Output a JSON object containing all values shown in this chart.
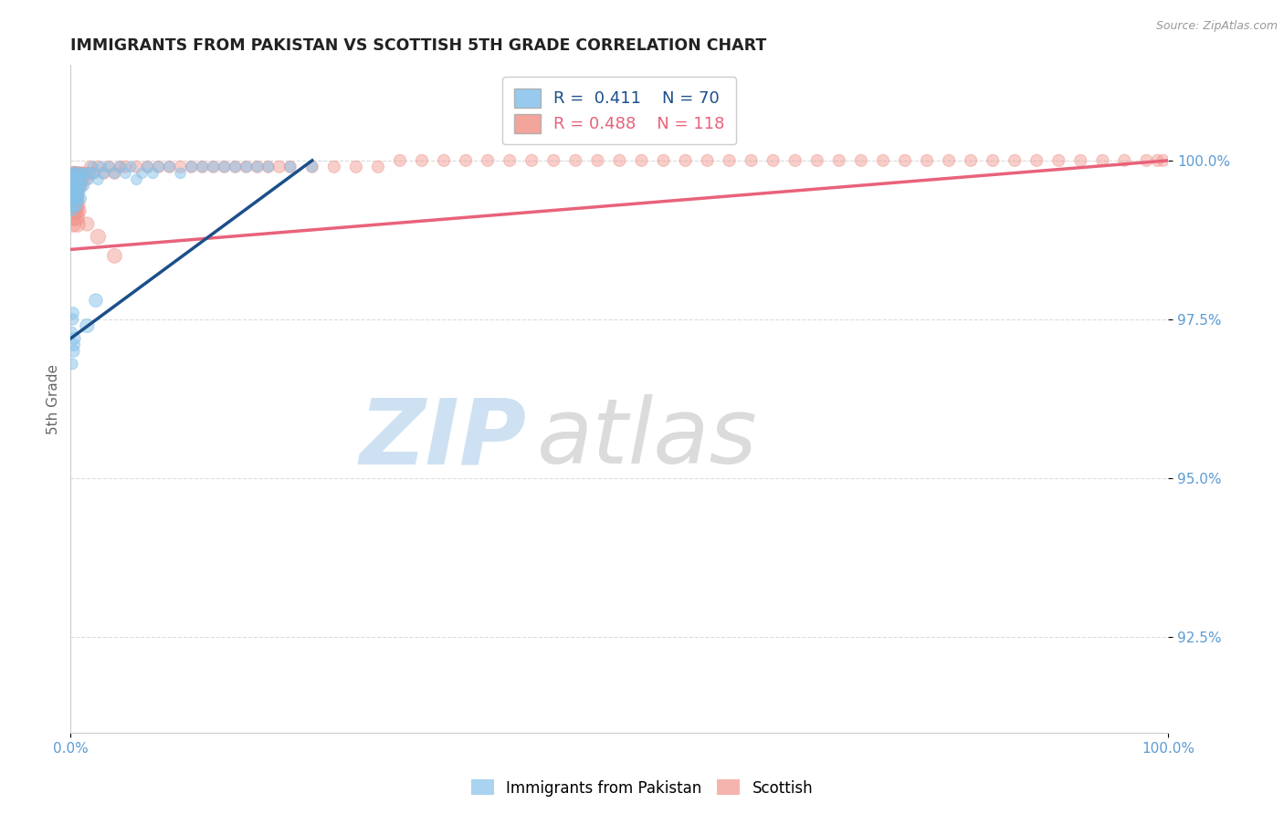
{
  "title": "IMMIGRANTS FROM PAKISTAN VS SCOTTISH 5TH GRADE CORRELATION CHART",
  "source_text": "Source: ZipAtlas.com",
  "ylabel": "5th Grade",
  "xlim": [
    0.0,
    100.0
  ],
  "ylim": [
    91.0,
    101.5
  ],
  "yticks": [
    92.5,
    95.0,
    97.5,
    100.0
  ],
  "ytick_labels": [
    "92.5%",
    "95.0%",
    "97.5%",
    "100.0%"
  ],
  "xtick_labels": [
    "0.0%",
    "100.0%"
  ],
  "legend_R_blue": "0.411",
  "legend_N_blue": "70",
  "legend_R_pink": "0.488",
  "legend_N_pink": "118",
  "blue_color": "#85C1E9",
  "pink_color": "#F1948A",
  "blue_line_color": "#1B4F8A",
  "pink_line_color": "#E8627A",
  "tick_color": "#5B9BD5",
  "grid_color": "#DDDDDD",
  "blue_scatter_x": [
    0.05,
    0.08,
    0.1,
    0.12,
    0.15,
    0.18,
    0.2,
    0.22,
    0.25,
    0.28,
    0.3,
    0.32,
    0.35,
    0.38,
    0.4,
    0.42,
    0.45,
    0.48,
    0.5,
    0.55,
    0.6,
    0.65,
    0.7,
    0.75,
    0.8,
    0.85,
    0.9,
    0.95,
    1.0,
    1.1,
    1.2,
    1.4,
    1.6,
    1.8,
    2.0,
    2.2,
    2.5,
    2.8,
    3.0,
    3.5,
    4.0,
    4.5,
    5.0,
    5.5,
    6.0,
    6.5,
    7.0,
    7.5,
    8.0,
    9.0,
    10.0,
    11.0,
    12.0,
    13.0,
    14.0,
    15.0,
    16.0,
    17.0,
    18.0,
    20.0,
    22.0,
    1.5,
    2.3,
    0.35,
    0.28,
    0.18,
    0.15,
    0.12,
    0.22,
    0.3
  ],
  "blue_scatter_y": [
    99.8,
    99.5,
    99.3,
    99.6,
    99.4,
    99.7,
    99.2,
    99.8,
    99.5,
    99.6,
    99.3,
    99.7,
    99.4,
    99.8,
    99.5,
    99.3,
    99.6,
    99.4,
    99.7,
    99.5,
    99.8,
    99.6,
    99.4,
    99.7,
    99.5,
    99.8,
    99.6,
    99.4,
    99.7,
    99.8,
    99.6,
    99.8,
    99.7,
    99.8,
    99.9,
    99.8,
    99.7,
    99.9,
    99.8,
    99.9,
    99.8,
    99.9,
    99.8,
    99.9,
    99.7,
    99.8,
    99.9,
    99.8,
    99.9,
    99.9,
    99.8,
    99.9,
    99.9,
    99.9,
    99.9,
    99.9,
    99.9,
    99.9,
    99.9,
    99.9,
    99.9,
    97.4,
    97.8,
    97.2,
    97.0,
    97.5,
    96.8,
    97.3,
    97.6,
    97.1
  ],
  "blue_scatter_sizes": [
    50,
    50,
    60,
    55,
    50,
    60,
    55,
    50,
    60,
    55,
    130,
    120,
    110,
    100,
    130,
    120,
    110,
    100,
    130,
    120,
    80,
    70,
    80,
    70,
    80,
    70,
    80,
    70,
    80,
    70,
    70,
    70,
    70,
    70,
    70,
    70,
    70,
    70,
    70,
    70,
    70,
    70,
    70,
    70,
    70,
    70,
    70,
    70,
    70,
    70,
    70,
    70,
    70,
    70,
    70,
    70,
    70,
    70,
    70,
    70,
    70,
    120,
    110,
    90,
    85,
    80,
    75,
    70,
    85,
    90
  ],
  "pink_scatter_x": [
    0.05,
    0.08,
    0.1,
    0.12,
    0.15,
    0.18,
    0.2,
    0.22,
    0.25,
    0.28,
    0.3,
    0.32,
    0.35,
    0.38,
    0.4,
    0.42,
    0.45,
    0.48,
    0.5,
    0.55,
    0.6,
    0.65,
    0.7,
    0.75,
    0.8,
    0.85,
    0.9,
    0.95,
    1.0,
    1.1,
    1.2,
    1.4,
    1.6,
    1.8,
    2.0,
    2.5,
    3.0,
    3.5,
    4.0,
    4.5,
    5.0,
    6.0,
    7.0,
    8.0,
    9.0,
    10.0,
    11.0,
    12.0,
    13.0,
    14.0,
    15.0,
    16.0,
    17.0,
    18.0,
    19.0,
    20.0,
    22.0,
    24.0,
    26.0,
    28.0,
    30.0,
    32.0,
    34.0,
    36.0,
    38.0,
    40.0,
    42.0,
    44.0,
    46.0,
    48.0,
    50.0,
    52.0,
    54.0,
    56.0,
    58.0,
    60.0,
    62.0,
    64.0,
    66.0,
    68.0,
    70.0,
    72.0,
    74.0,
    76.0,
    78.0,
    80.0,
    82.0,
    84.0,
    86.0,
    88.0,
    90.0,
    92.0,
    94.0,
    96.0,
    98.0,
    99.0,
    99.5,
    0.35,
    0.28,
    0.2,
    0.4,
    0.5,
    0.3,
    0.45,
    0.6,
    0.55,
    0.38,
    0.22,
    4.0,
    2.5,
    1.5,
    0.8,
    0.6,
    0.4,
    0.25,
    0.18,
    0.12,
    0.08
  ],
  "pink_scatter_y": [
    99.8,
    99.6,
    99.7,
    99.5,
    99.8,
    99.6,
    99.7,
    99.5,
    99.8,
    99.6,
    99.7,
    99.5,
    99.8,
    99.6,
    99.7,
    99.5,
    99.8,
    99.6,
    99.7,
    99.8,
    99.7,
    99.6,
    99.8,
    99.7,
    99.6,
    99.8,
    99.7,
    99.6,
    99.8,
    99.7,
    99.8,
    99.7,
    99.8,
    99.9,
    99.8,
    99.9,
    99.8,
    99.9,
    99.8,
    99.9,
    99.9,
    99.9,
    99.9,
    99.9,
    99.9,
    99.9,
    99.9,
    99.9,
    99.9,
    99.9,
    99.9,
    99.9,
    99.9,
    99.9,
    99.9,
    99.9,
    99.9,
    99.9,
    99.9,
    99.9,
    100.0,
    100.0,
    100.0,
    100.0,
    100.0,
    100.0,
    100.0,
    100.0,
    100.0,
    100.0,
    100.0,
    100.0,
    100.0,
    100.0,
    100.0,
    100.0,
    100.0,
    100.0,
    100.0,
    100.0,
    100.0,
    100.0,
    100.0,
    100.0,
    100.0,
    100.0,
    100.0,
    100.0,
    100.0,
    100.0,
    100.0,
    100.0,
    100.0,
    100.0,
    100.0,
    100.0,
    100.0,
    99.3,
    99.2,
    99.0,
    99.4,
    99.1,
    99.5,
    99.2,
    99.0,
    99.3,
    99.4,
    99.1,
    98.5,
    98.8,
    99.0,
    99.2,
    99.5,
    99.3,
    99.6,
    99.4,
    99.7,
    99.5
  ],
  "pink_scatter_sizes": [
    80,
    75,
    80,
    75,
    80,
    75,
    80,
    75,
    120,
    110,
    100,
    120,
    110,
    100,
    120,
    110,
    100,
    90,
    120,
    110,
    100,
    90,
    100,
    90,
    100,
    90,
    100,
    90,
    100,
    90,
    90,
    90,
    90,
    90,
    90,
    90,
    90,
    90,
    90,
    90,
    90,
    90,
    90,
    90,
    90,
    90,
    90,
    90,
    90,
    90,
    90,
    90,
    90,
    90,
    90,
    90,
    90,
    90,
    90,
    90,
    90,
    90,
    90,
    90,
    90,
    90,
    90,
    90,
    90,
    90,
    90,
    90,
    90,
    90,
    90,
    90,
    90,
    90,
    90,
    90,
    90,
    90,
    90,
    90,
    90,
    90,
    90,
    90,
    90,
    90,
    90,
    90,
    90,
    90,
    90,
    90,
    90,
    200,
    180,
    160,
    190,
    170,
    200,
    180,
    160,
    170,
    190,
    150,
    130,
    140,
    120,
    110,
    100,
    90,
    80,
    75,
    70,
    65
  ],
  "blue_trend_x0": 0.0,
  "blue_trend_y0": 97.2,
  "blue_trend_x1": 22.0,
  "blue_trend_y1": 100.0,
  "pink_trend_x0": 0.0,
  "pink_trend_y0": 98.6,
  "pink_trend_x1": 100.0,
  "pink_trend_y1": 100.0
}
